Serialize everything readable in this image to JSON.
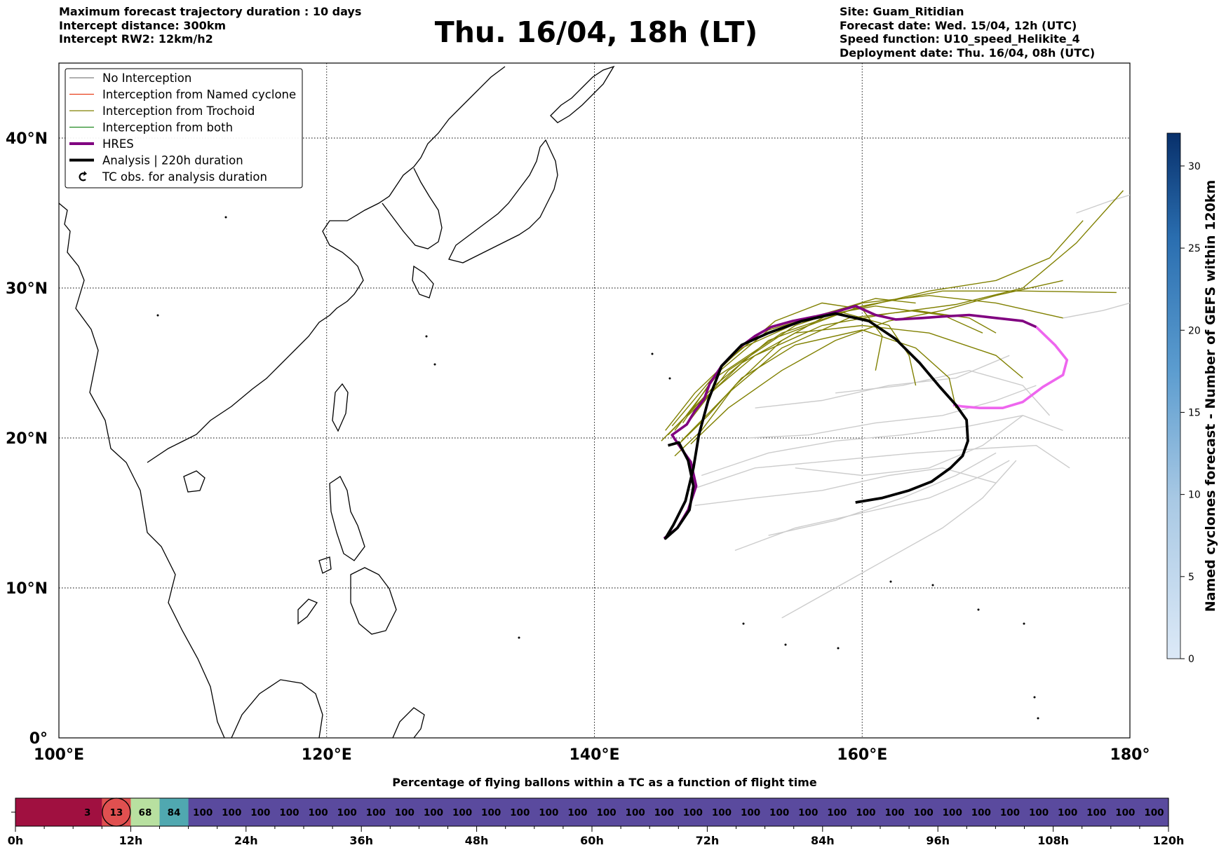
{
  "header": {
    "title": "Thu. 16/04, 18h (LT)",
    "info_left": [
      "Maximum forecast trajectory duration : 10 days",
      "Intercept distance: 300km",
      "Intercept RW2: 12km/h2"
    ],
    "info_right": [
      "Site: Guam_Ritidian",
      "Forecast date: Wed. 15/04, 12h (UTC)",
      "Speed function: U10_speed_Helikite_4",
      "Deployment date: Thu. 16/04, 08h (UTC)"
    ]
  },
  "map": {
    "lon_range": [
      100,
      180
    ],
    "lat_range": [
      0,
      45
    ],
    "lon_ticks": [
      {
        "value": 100,
        "label": "100°E"
      },
      {
        "value": 120,
        "label": "120°E"
      },
      {
        "value": 140,
        "label": "140°E"
      },
      {
        "value": 160,
        "label": "160°E"
      },
      {
        "value": 180,
        "label": "180°"
      }
    ],
    "lat_ticks": [
      {
        "value": 0,
        "label": "0°"
      },
      {
        "value": 10,
        "label": "10°N"
      },
      {
        "value": 20,
        "label": "20°N"
      },
      {
        "value": 30,
        "label": "30°N"
      },
      {
        "value": 40,
        "label": "40°N"
      }
    ],
    "gridlines": true,
    "legend_position": "top-left",
    "legend": [
      {
        "label": "No Interception",
        "color": "#808080",
        "kind": "thin"
      },
      {
        "label": "Interception from Named cyclone",
        "color": "#e8401c",
        "kind": "thin"
      },
      {
        "label": "Interception from Trochoid",
        "color": "#808000",
        "kind": "thin"
      },
      {
        "label": "Interception from both",
        "color": "#228b22",
        "kind": "thin"
      },
      {
        "label": "HRES",
        "color": "#800080",
        "kind": "thick"
      },
      {
        "label": "Analysis | 220h duration",
        "color": "#000000",
        "kind": "thick"
      },
      {
        "label": "TC obs. for analysis duration",
        "color": "#000000",
        "kind": "marker"
      }
    ]
  },
  "trajectories": {
    "analysis_color": "#000000",
    "hres_color": "#800080",
    "hres_late_color": "#ee66ee",
    "trochoid_color": "#808000",
    "no_interception_color": "#cccccc",
    "analysis": [
      [
        145.5,
        19.5
      ],
      [
        146.3,
        19.7
      ],
      [
        147.0,
        18.5
      ],
      [
        147.4,
        16.8
      ],
      [
        147.1,
        15.2
      ],
      [
        146.2,
        14.0
      ],
      [
        145.3,
        13.3
      ],
      [
        145.9,
        14.2
      ],
      [
        146.8,
        15.8
      ],
      [
        147.4,
        18.0
      ],
      [
        147.8,
        20.2
      ],
      [
        148.5,
        22.5
      ],
      [
        149.5,
        24.8
      ],
      [
        151.0,
        26.2
      ],
      [
        153.0,
        27.0
      ],
      [
        155.5,
        27.8
      ],
      [
        158.0,
        28.3
      ],
      [
        160.5,
        27.8
      ],
      [
        162.5,
        26.6
      ],
      [
        164.3,
        25.0
      ],
      [
        165.8,
        23.4
      ],
      [
        167.0,
        22.2
      ],
      [
        167.8,
        21.2
      ],
      [
        167.9,
        19.8
      ],
      [
        167.5,
        18.8
      ],
      [
        166.6,
        18.0
      ],
      [
        165.2,
        17.1
      ],
      [
        163.5,
        16.5
      ],
      [
        161.5,
        16.0
      ],
      [
        159.5,
        15.7
      ]
    ],
    "hres": [
      [
        145.2,
        13.3
      ],
      [
        146.2,
        14.0
      ],
      [
        147.0,
        15.2
      ],
      [
        147.6,
        16.8
      ],
      [
        147.2,
        18.4
      ],
      [
        146.4,
        19.4
      ],
      [
        145.8,
        20.2
      ],
      [
        146.9,
        20.9
      ],
      [
        147.5,
        21.8
      ],
      [
        148.2,
        22.6
      ],
      [
        148.6,
        23.6
      ],
      [
        149.5,
        24.8
      ],
      [
        150.8,
        26.0
      ],
      [
        152.0,
        26.8
      ],
      [
        153.2,
        27.4
      ],
      [
        154.8,
        27.8
      ],
      [
        156.5,
        28.1
      ],
      [
        158.0,
        28.4
      ],
      [
        159.5,
        28.8
      ],
      [
        161.0,
        28.2
      ],
      [
        162.5,
        27.9
      ],
      [
        164.5,
        28.0
      ],
      [
        166.0,
        28.1
      ],
      [
        168.0,
        28.2
      ],
      [
        170.0,
        28.0
      ],
      [
        172.0,
        27.8
      ],
      [
        173.0,
        27.4
      ]
    ],
    "hres_late": [
      [
        173.0,
        27.4
      ],
      [
        174.4,
        26.2
      ],
      [
        175.3,
        25.2
      ],
      [
        175.0,
        24.2
      ],
      [
        173.5,
        23.4
      ],
      [
        172.0,
        22.4
      ],
      [
        170.5,
        22.0
      ],
      [
        168.8,
        22.0
      ],
      [
        167.5,
        22.1
      ],
      [
        166.8,
        22.2
      ]
    ],
    "trochoid": [
      [
        [
          145,
          19.8
        ],
        [
          148,
          22.5
        ],
        [
          152,
          25.5
        ],
        [
          157,
          27.5
        ],
        [
          162,
          28.3
        ],
        [
          167,
          28.9
        ],
        [
          172,
          30.0
        ],
        [
          176,
          33.0
        ],
        [
          179.5,
          36.5
        ]
      ],
      [
        [
          145.5,
          20.2
        ],
        [
          149,
          23.5
        ],
        [
          153,
          26.5
        ],
        [
          159,
          28.5
        ],
        [
          165,
          29.8
        ],
        [
          170,
          30.5
        ],
        [
          174,
          32.0
        ],
        [
          176.5,
          34.5
        ]
      ],
      [
        [
          146,
          20.5
        ],
        [
          149,
          24.0
        ],
        [
          154,
          27.0
        ],
        [
          160,
          28.8
        ],
        [
          166,
          29.8
        ],
        [
          172,
          29.8
        ],
        [
          179,
          29.7
        ]
      ],
      [
        [
          146.5,
          19.8
        ],
        [
          150,
          23.0
        ],
        [
          154,
          26.0
        ],
        [
          159,
          28.0
        ],
        [
          164,
          28.5
        ],
        [
          168,
          28.0
        ],
        [
          170,
          27.0
        ]
      ],
      [
        [
          146.8,
          20.8
        ],
        [
          150,
          24.5
        ],
        [
          155,
          27.5
        ],
        [
          160,
          29.0
        ],
        [
          165,
          29.5
        ],
        [
          170,
          29.0
        ],
        [
          175,
          28.0
        ]
      ],
      [
        [
          146.2,
          19.5
        ],
        [
          148.5,
          21.5
        ],
        [
          151,
          24.0
        ],
        [
          155,
          26.2
        ],
        [
          160,
          27.2
        ],
        [
          164,
          26.0
        ],
        [
          166.5,
          24.0
        ],
        [
          167.0,
          22.0
        ]
      ],
      [
        [
          145.8,
          20.8
        ],
        [
          149,
          24.2
        ],
        [
          153,
          27.2
        ],
        [
          158,
          28.5
        ],
        [
          162,
          27.5
        ],
        [
          163.5,
          25.5
        ],
        [
          164.0,
          23.5
        ]
      ],
      [
        [
          147,
          21.5
        ],
        [
          151,
          25.0
        ],
        [
          155,
          27.0
        ],
        [
          160,
          27.5
        ],
        [
          165,
          27.0
        ],
        [
          170,
          25.5
        ],
        [
          172,
          24.0
        ]
      ],
      [
        [
          145.3,
          20.5
        ],
        [
          147.5,
          23.0
        ],
        [
          151,
          26.0
        ],
        [
          156,
          28.0
        ],
        [
          161,
          28.8
        ],
        [
          166,
          28.2
        ],
        [
          169,
          27.0
        ]
      ],
      [
        [
          147.2,
          19.6
        ],
        [
          150,
          22.0
        ],
        [
          154,
          24.5
        ],
        [
          158,
          26.5
        ],
        [
          162,
          27.8
        ],
        [
          166,
          28.5
        ],
        [
          170,
          29.5
        ],
        [
          175,
          30.5
        ]
      ],
      [
        [
          146.0,
          18.8
        ],
        [
          148.0,
          20.5
        ],
        [
          150.5,
          23.5
        ],
        [
          154.0,
          26.5
        ],
        [
          158.0,
          28.5
        ],
        [
          161.0,
          29.3
        ],
        [
          164.0,
          29.0
        ]
      ],
      [
        [
          146.6,
          21.0
        ],
        [
          149.5,
          24.8
        ],
        [
          153.5,
          27.8
        ],
        [
          157.0,
          29.0
        ],
        [
          160.0,
          28.6
        ],
        [
          161.5,
          26.8
        ],
        [
          161.0,
          24.5
        ]
      ]
    ],
    "no_interception": [
      [
        [
          147,
          16.5
        ],
        [
          152,
          18.0
        ],
        [
          158,
          18.5
        ],
        [
          164,
          19.0
        ],
        [
          169,
          19.3
        ],
        [
          173,
          19.5
        ],
        [
          175.5,
          18.0
        ]
      ],
      [
        [
          148,
          17.5
        ],
        [
          153,
          19.0
        ],
        [
          158,
          19.8
        ],
        [
          163,
          20.2
        ],
        [
          168,
          20.8
        ],
        [
          172,
          21.5
        ],
        [
          175.0,
          20.5
        ]
      ],
      [
        [
          147.5,
          15.5
        ],
        [
          152,
          16.0
        ],
        [
          157,
          16.5
        ],
        [
          162,
          17.5
        ],
        [
          166,
          18.0
        ],
        [
          170,
          17.0
        ]
      ],
      [
        [
          151.5,
          20.0
        ],
        [
          156,
          20.2
        ],
        [
          161,
          21.0
        ],
        [
          166,
          21.5
        ],
        [
          170,
          22.5
        ],
        [
          173,
          23.5
        ]
      ],
      [
        [
          152,
          22.0
        ],
        [
          157,
          22.5
        ],
        [
          162,
          23.5
        ],
        [
          167,
          24.0
        ],
        [
          171,
          25.5
        ]
      ],
      [
        [
          150.5,
          12.5
        ],
        [
          155,
          14.0
        ],
        [
          160,
          15.0
        ],
        [
          165,
          16.0
        ],
        [
          169,
          17.5
        ],
        [
          171,
          18.5
        ]
      ],
      [
        [
          154,
          8.0
        ],
        [
          158,
          10.0
        ],
        [
          162,
          12.0
        ],
        [
          166,
          14.0
        ],
        [
          169,
          16.0
        ],
        [
          171.5,
          18.5
        ]
      ],
      [
        [
          153,
          13.5
        ],
        [
          158,
          14.5
        ],
        [
          163,
          16.0
        ],
        [
          167,
          17.5
        ],
        [
          170,
          19.0
        ]
      ],
      [
        [
          155,
          18.0
        ],
        [
          160,
          17.5
        ],
        [
          165,
          18.0
        ],
        [
          169,
          19.5
        ],
        [
          172,
          21.5
        ]
      ],
      [
        [
          175,
          28.0
        ],
        [
          178,
          28.5
        ],
        [
          180,
          29.0
        ]
      ],
      [
        [
          176,
          35.0
        ],
        [
          178.5,
          35.8
        ],
        [
          180,
          36.2
        ]
      ],
      [
        [
          158,
          23.0
        ],
        [
          163,
          23.5
        ],
        [
          168,
          24.5
        ],
        [
          172,
          23.5
        ],
        [
          174,
          21.5
        ]
      ]
    ]
  },
  "colorbar": {
    "label": "Named cyclones forecast - Number of GEFS within 120km",
    "min": 0,
    "max": 32,
    "ticks": [
      0,
      5,
      10,
      15,
      20,
      25,
      30
    ]
  },
  "bottom_bar": {
    "title": "Percentage of flying ballons within a TC as a function of flight time",
    "cells": [
      {
        "value": "",
        "color": "#a01040"
      },
      {
        "value": "",
        "color": "#a01040"
      },
      {
        "value": "3",
        "color": "#a01040"
      },
      {
        "value": "13",
        "color": "#e05050",
        "circled": true
      },
      {
        "value": "68",
        "color": "#b8e0a0"
      },
      {
        "value": "84",
        "color": "#50a8b0"
      },
      {
        "value": "100",
        "color": "#5a4a9e"
      },
      {
        "value": "100",
        "color": "#5a4a9e"
      },
      {
        "value": "100",
        "color": "#5a4a9e"
      },
      {
        "value": "100",
        "color": "#5a4a9e"
      },
      {
        "value": "100",
        "color": "#5a4a9e"
      },
      {
        "value": "100",
        "color": "#5a4a9e"
      },
      {
        "value": "100",
        "color": "#5a4a9e"
      },
      {
        "value": "100",
        "color": "#5a4a9e"
      },
      {
        "value": "100",
        "color": "#5a4a9e"
      },
      {
        "value": "100",
        "color": "#5a4a9e"
      },
      {
        "value": "100",
        "color": "#5a4a9e"
      },
      {
        "value": "100",
        "color": "#5a4a9e"
      },
      {
        "value": "100",
        "color": "#5a4a9e"
      },
      {
        "value": "100",
        "color": "#5a4a9e"
      },
      {
        "value": "100",
        "color": "#5a4a9e"
      },
      {
        "value": "100",
        "color": "#5a4a9e"
      },
      {
        "value": "100",
        "color": "#5a4a9e"
      },
      {
        "value": "100",
        "color": "#5a4a9e"
      },
      {
        "value": "100",
        "color": "#5a4a9e"
      },
      {
        "value": "100",
        "color": "#5a4a9e"
      },
      {
        "value": "100",
        "color": "#5a4a9e"
      },
      {
        "value": "100",
        "color": "#5a4a9e"
      },
      {
        "value": "100",
        "color": "#5a4a9e"
      },
      {
        "value": "100",
        "color": "#5a4a9e"
      },
      {
        "value": "100",
        "color": "#5a4a9e"
      },
      {
        "value": "100",
        "color": "#5a4a9e"
      },
      {
        "value": "100",
        "color": "#5a4a9e"
      },
      {
        "value": "100",
        "color": "#5a4a9e"
      },
      {
        "value": "100",
        "color": "#5a4a9e"
      },
      {
        "value": "100",
        "color": "#5a4a9e"
      },
      {
        "value": "100",
        "color": "#5a4a9e"
      },
      {
        "value": "100",
        "color": "#5a4a9e"
      },
      {
        "value": "100",
        "color": "#5a4a9e"
      },
      {
        "value": "100",
        "color": "#5a4a9e"
      }
    ],
    "hours_max": 120,
    "tick_labels": [
      "0h",
      "12h",
      "24h",
      "36h",
      "48h",
      "60h",
      "72h",
      "84h",
      "96h",
      "108h",
      "120h"
    ]
  }
}
